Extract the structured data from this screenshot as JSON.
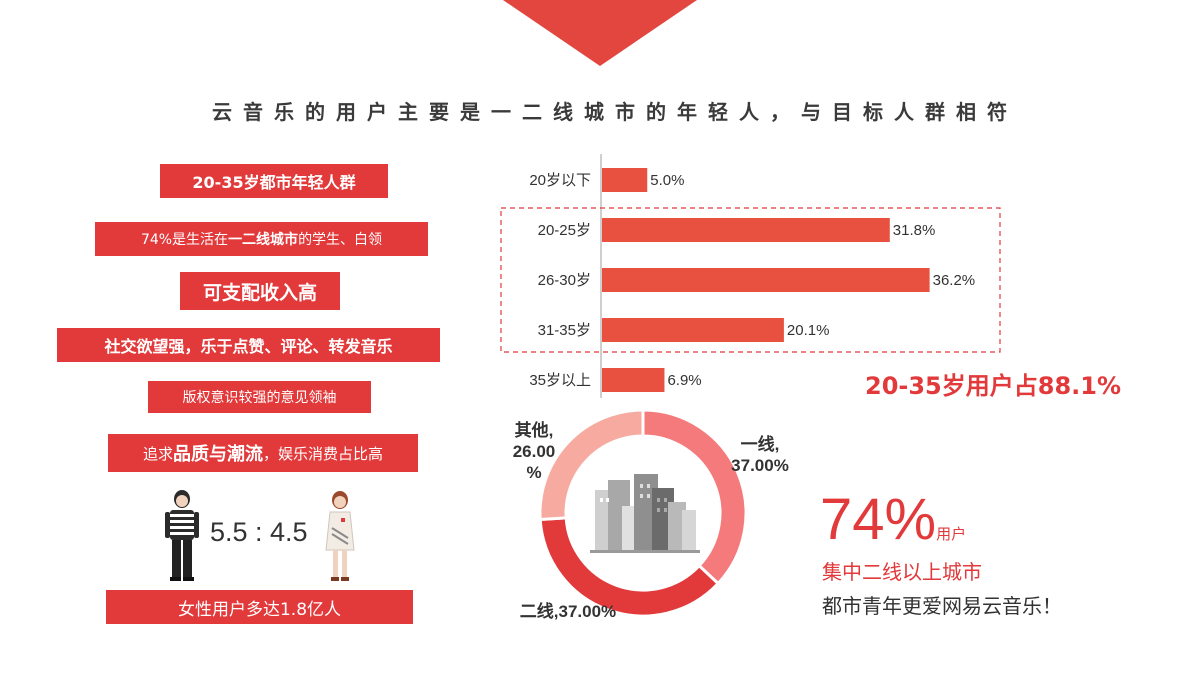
{
  "title": "云音乐的用户主要是一二线城市的年轻人，与目标人群相符",
  "tags": {
    "t1": "20-35岁都市年轻人群",
    "t2_pre": "74%是生活在",
    "t2_bold": "一二线城市",
    "t2_post": "的学生、白领",
    "t3": "可支配收入高",
    "t4": "社交欲望强，乐于点赞、评论、转发音乐",
    "t5": "版权意识较强的意见领袖",
    "t6_pre": "追求",
    "t6_bold": "品质与潮流",
    "t6_post": "，娱乐消费占比高",
    "t7": "女性用户多达1.8亿人"
  },
  "gender_ratio": "5.5 : 4.5",
  "highlight": "20-35岁用户占88.1%",
  "summary": {
    "pct": "74%",
    "unit": "用户",
    "line1": "集中二线以上城市",
    "line2": "都市青年更爱网易云音乐！"
  },
  "colors": {
    "accent": "#e2393b",
    "bar": "#e8503f"
  },
  "chart_data": [
    {
      "type": "bar",
      "orientation": "horizontal",
      "categories": [
        "20岁以下",
        "20-25岁",
        "26-30岁",
        "31-35岁",
        "35岁以上"
      ],
      "values": [
        5.0,
        31.8,
        36.2,
        20.1,
        6.9
      ],
      "labels": [
        "5.0%",
        "31.8%",
        "36.2%",
        "20.1%",
        "6.9%"
      ],
      "highlighted_range": [
        "20-25岁",
        "31-35岁"
      ]
    },
    {
      "type": "pie",
      "variant": "donut",
      "slices": [
        {
          "label_line1": "一线,",
          "label_line2": "37.00%",
          "value": 37.0,
          "color": "#f47a7c"
        },
        {
          "label_line1": "二线,37.00%",
          "label_line2": "",
          "value": 37.0,
          "color": "#e2393b"
        },
        {
          "label_line1": "其他,",
          "label_line2": "26.00",
          "label_line3": "%",
          "value": 26.0,
          "color": "#f7aaa0"
        }
      ]
    }
  ]
}
